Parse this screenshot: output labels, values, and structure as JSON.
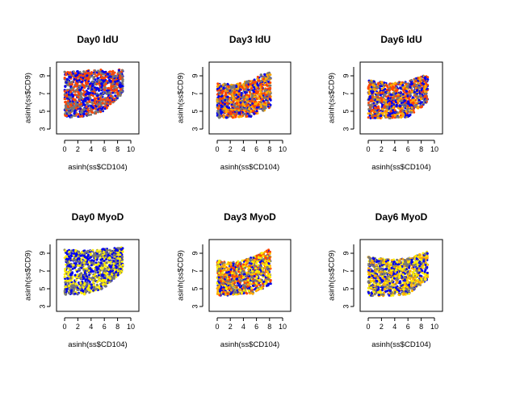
{
  "chart_data": [
    {
      "type": "scatter",
      "title": "Day0 IdU",
      "xlabel": "asinh(ss$CD104)",
      "ylabel": "asinh(ss$CD9)",
      "xlim": [
        0,
        10
      ],
      "ylim": [
        3,
        10
      ],
      "xticks": [
        "0",
        "2",
        "4",
        "6",
        "8",
        "10"
      ],
      "yticks": [
        "3",
        "5",
        "7",
        "9"
      ],
      "grid": false,
      "legend": "none",
      "colors": [
        "#0000ee",
        "#777777",
        "#ff4400"
      ],
      "region": {
        "x": [
          0,
          8.8
        ],
        "y_min": [
          4.3,
          4.4,
          5.0,
          7.0
        ],
        "y_max": [
          9.5,
          9.6,
          9.7,
          9.7
        ]
      },
      "points": [
        [
          0.4,
          8.6,
          0
        ],
        [
          1.2,
          5.1,
          1
        ],
        [
          2.3,
          7.4,
          0
        ],
        [
          3.1,
          6.2,
          0
        ],
        [
          4.4,
          8.8,
          1
        ],
        [
          5.6,
          8.1,
          0
        ],
        [
          6.5,
          9.2,
          0
        ],
        [
          7.4,
          8.9,
          1
        ],
        [
          1.7,
          9.0,
          0
        ],
        [
          2.9,
          4.7,
          0
        ],
        [
          3.6,
          9.3,
          2
        ],
        [
          6.9,
          8.4,
          0
        ],
        [
          0.9,
          6.5,
          1
        ],
        [
          4.9,
          7.6,
          0
        ]
      ]
    },
    {
      "type": "scatter",
      "title": "Day3 IdU",
      "xlabel": "asinh(ss$CD104)",
      "ylabel": "asinh(ss$CD9)",
      "xlim": [
        0,
        10
      ],
      "ylim": [
        3,
        10
      ],
      "xticks": [
        "0",
        "2",
        "4",
        "6",
        "8",
        "10"
      ],
      "yticks": [
        "3",
        "5",
        "7",
        "9"
      ],
      "grid": false,
      "legend": "none",
      "colors": [
        "#ff4400",
        "#ffaa00",
        "#0000ee",
        "#777777"
      ],
      "region": {
        "x": [
          0,
          8.2
        ],
        "y_min": [
          4.2,
          4.3,
          4.4,
          5.5
        ],
        "y_max": [
          8.2,
          8.0,
          8.6,
          9.6
        ]
      },
      "points": [
        [
          0.5,
          6.4,
          0
        ],
        [
          1.4,
          5.2,
          1
        ],
        [
          2.6,
          7.1,
          0
        ],
        [
          3.4,
          4.8,
          2
        ],
        [
          4.5,
          6.6,
          1
        ],
        [
          5.8,
          8.3,
          0
        ],
        [
          6.7,
          9.1,
          3
        ],
        [
          7.5,
          8.7,
          1
        ],
        [
          1.0,
          7.6,
          2
        ],
        [
          3.0,
          5.9,
          0
        ],
        [
          4.9,
          5.3,
          1
        ],
        [
          6.2,
          7.2,
          0
        ],
        [
          0.2,
          4.9,
          3
        ],
        [
          2.1,
          6.0,
          1
        ]
      ]
    },
    {
      "type": "scatter",
      "title": "Day6 IdU",
      "xlabel": "asinh(ss$CD104)",
      "ylabel": "asinh(ss$CD9)",
      "xlim": [
        0,
        10
      ],
      "ylim": [
        3,
        10
      ],
      "xticks": [
        "0",
        "2",
        "4",
        "6",
        "8",
        "10"
      ],
      "yticks": [
        "3",
        "5",
        "7",
        "9"
      ],
      "grid": false,
      "legend": "none",
      "colors": [
        "#0000ee",
        "#777777",
        "#ff4400",
        "#ffaa00"
      ],
      "region": {
        "x": [
          0,
          9.0
        ],
        "y_min": [
          4.2,
          4.2,
          4.3,
          6.0
        ],
        "y_max": [
          8.5,
          8.2,
          8.4,
          9.2
        ]
      },
      "points": [
        [
          0.6,
          7.1,
          0
        ],
        [
          1.5,
          5.4,
          2
        ],
        [
          2.4,
          6.8,
          1
        ],
        [
          3.3,
          4.7,
          0
        ],
        [
          4.2,
          7.3,
          2
        ],
        [
          5.5,
          6.2,
          0
        ],
        [
          6.6,
          8.1,
          0
        ],
        [
          7.8,
          8.6,
          3
        ],
        [
          0.3,
          8.3,
          1
        ],
        [
          2.8,
          7.9,
          2
        ],
        [
          4.8,
          5.6,
          0
        ],
        [
          5.9,
          7.8,
          1
        ],
        [
          1.9,
          4.5,
          0
        ],
        [
          8.6,
          8.8,
          0
        ]
      ]
    },
    {
      "type": "scatter",
      "title": "Day0 MyoD",
      "xlabel": "asinh(ss$CD104)",
      "ylabel": "asinh(ss$CD9)",
      "xlim": [
        0,
        10
      ],
      "ylim": [
        3,
        10
      ],
      "xticks": [
        "0",
        "2",
        "4",
        "6",
        "8",
        "10"
      ],
      "yticks": [
        "3",
        "5",
        "7",
        "9"
      ],
      "grid": false,
      "legend": "none",
      "colors": [
        "#777777",
        "#0000ee",
        "#ffee00"
      ],
      "region": {
        "x": [
          0,
          8.8
        ],
        "y_min": [
          4.3,
          4.4,
          5.0,
          7.0
        ],
        "y_max": [
          9.4,
          9.3,
          9.5,
          9.7
        ]
      },
      "points": [
        [
          0.5,
          8.3,
          1
        ],
        [
          1.3,
          5.3,
          0
        ],
        [
          2.2,
          7.2,
          0
        ],
        [
          3.2,
          6.0,
          1
        ],
        [
          4.3,
          8.7,
          0
        ],
        [
          5.5,
          7.9,
          1
        ],
        [
          6.4,
          9.3,
          0
        ],
        [
          7.5,
          8.8,
          0
        ],
        [
          1.8,
          8.9,
          1
        ],
        [
          3.0,
          4.4,
          2
        ],
        [
          3.5,
          9.2,
          0
        ],
        [
          6.8,
          8.5,
          2
        ],
        [
          0.9,
          6.2,
          0
        ],
        [
          4.8,
          7.4,
          1
        ]
      ]
    },
    {
      "type": "scatter",
      "title": "Day3 MyoD",
      "xlabel": "asinh(ss$CD104)",
      "ylabel": "asinh(ss$CD9)",
      "xlim": [
        0,
        10
      ],
      "ylim": [
        3,
        10
      ],
      "xticks": [
        "0",
        "2",
        "4",
        "6",
        "8",
        "10"
      ],
      "yticks": [
        "3",
        "5",
        "7",
        "9"
      ],
      "grid": false,
      "legend": "none",
      "colors": [
        "#ffaa00",
        "#ffee00",
        "#ff4400",
        "#777777",
        "#0000ee"
      ],
      "region": {
        "x": [
          0,
          8.2
        ],
        "y_min": [
          4.2,
          4.3,
          4.4,
          5.5
        ],
        "y_max": [
          8.2,
          8.0,
          8.6,
          9.6
        ]
      },
      "points": [
        [
          0.5,
          6.6,
          0
        ],
        [
          1.4,
          5.0,
          1
        ],
        [
          2.5,
          7.3,
          2
        ],
        [
          3.5,
          4.9,
          0
        ],
        [
          4.4,
          6.4,
          3
        ],
        [
          5.7,
          8.2,
          0
        ],
        [
          6.8,
          9.0,
          1
        ],
        [
          7.4,
          8.5,
          2
        ],
        [
          1.1,
          7.7,
          0
        ],
        [
          3.0,
          6.1,
          4
        ],
        [
          4.9,
          5.5,
          0
        ],
        [
          6.1,
          7.0,
          1
        ],
        [
          0.2,
          5.2,
          0
        ],
        [
          2.0,
          5.8,
          3
        ]
      ]
    },
    {
      "type": "scatter",
      "title": "Day6 MyoD",
      "xlabel": "asinh(ss$CD104)",
      "ylabel": "asinh(ss$CD9)",
      "xlim": [
        0,
        10
      ],
      "ylim": [
        3,
        10
      ],
      "xticks": [
        "0",
        "2",
        "4",
        "6",
        "8",
        "10"
      ],
      "yticks": [
        "3",
        "5",
        "7",
        "9"
      ],
      "grid": false,
      "legend": "none",
      "colors": [
        "#0000ee",
        "#777777",
        "#ffee00",
        "#ffaa00"
      ],
      "region": {
        "x": [
          0,
          9.0
        ],
        "y_min": [
          4.2,
          4.2,
          4.3,
          6.0
        ],
        "y_max": [
          8.6,
          8.3,
          8.4,
          9.2
        ]
      },
      "points": [
        [
          0.6,
          7.0,
          0
        ],
        [
          1.5,
          5.5,
          2
        ],
        [
          2.4,
          6.7,
          1
        ],
        [
          3.3,
          4.8,
          0
        ],
        [
          4.2,
          7.1,
          2
        ],
        [
          5.5,
          6.3,
          1
        ],
        [
          6.6,
          8.0,
          0
        ],
        [
          7.8,
          8.8,
          3
        ],
        [
          0.3,
          8.4,
          1
        ],
        [
          2.8,
          7.8,
          3
        ],
        [
          4.8,
          5.7,
          0
        ],
        [
          5.9,
          7.6,
          1
        ],
        [
          1.9,
          4.6,
          2
        ],
        [
          8.6,
          8.9,
          1
        ]
      ]
    }
  ]
}
